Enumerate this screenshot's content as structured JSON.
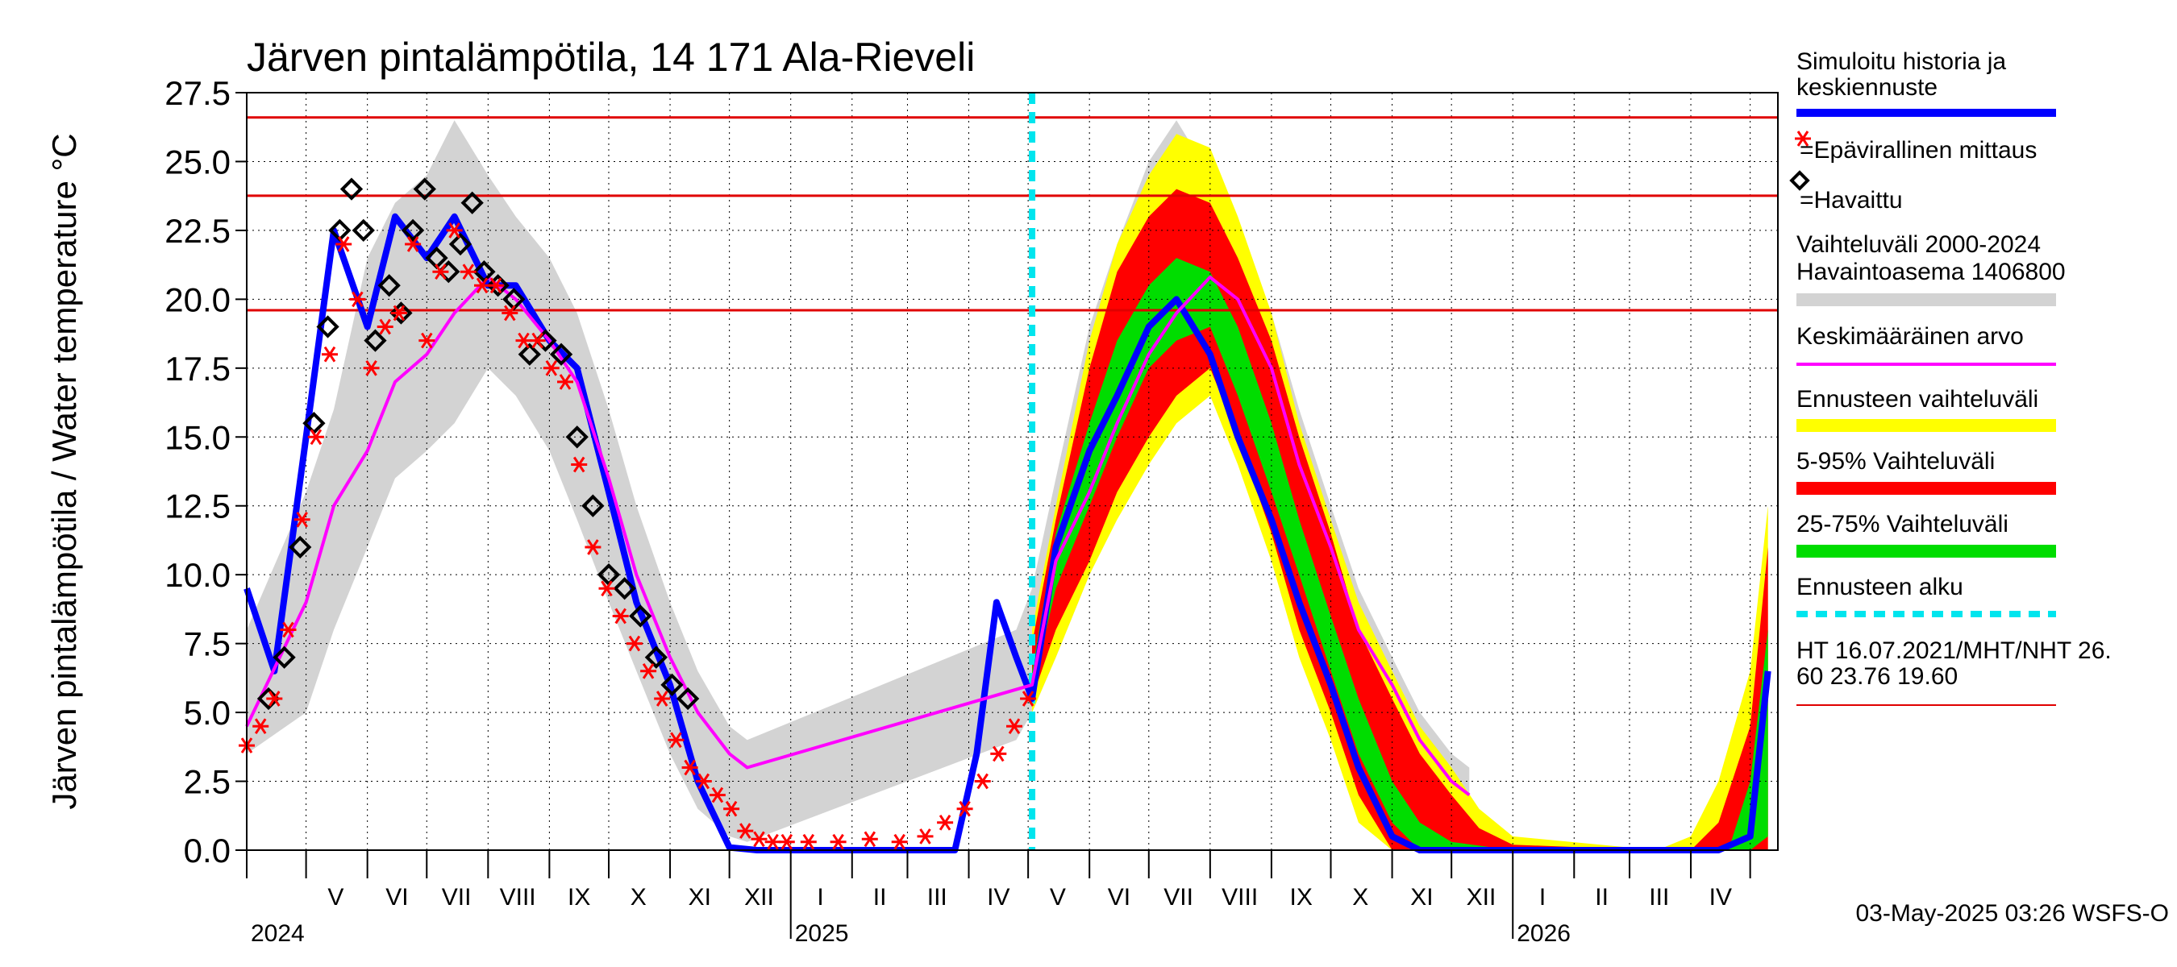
{
  "chart_data": {
    "type": "line",
    "title": "Järven pintalämpötila, 14 171 Ala-Rieveli",
    "ylabel": "Järven pintalämpötila / Water temperature °C",
    "xlabel": "",
    "ylim": [
      0,
      27.5
    ],
    "y_ticks": [
      "0.0",
      "2.5",
      "5.0",
      "7.5",
      "10.0",
      "12.5",
      "15.0",
      "17.5",
      "20.0",
      "22.5",
      "25.0",
      "27.5"
    ],
    "x_range": [
      "2024-04-01",
      "2026-05-15"
    ],
    "x_month_labels": [
      {
        "label": "V",
        "date": "2024-05-16"
      },
      {
        "label": "VI",
        "date": "2024-06-16"
      },
      {
        "label": "VII",
        "date": "2024-07-16"
      },
      {
        "label": "VIII",
        "date": "2024-08-16"
      },
      {
        "label": "IX",
        "date": "2024-09-16"
      },
      {
        "label": "X",
        "date": "2024-10-16"
      },
      {
        "label": "XI",
        "date": "2024-11-16"
      },
      {
        "label": "XII",
        "date": "2024-12-16"
      },
      {
        "label": "I",
        "date": "2025-01-16"
      },
      {
        "label": "II",
        "date": "2025-02-15"
      },
      {
        "label": "III",
        "date": "2025-03-16"
      },
      {
        "label": "IV",
        "date": "2025-04-16"
      },
      {
        "label": "V",
        "date": "2025-05-16"
      },
      {
        "label": "VI",
        "date": "2025-06-16"
      },
      {
        "label": "VII",
        "date": "2025-07-16"
      },
      {
        "label": "VIII",
        "date": "2025-08-16"
      },
      {
        "label": "IX",
        "date": "2025-09-16"
      },
      {
        "label": "X",
        "date": "2025-10-16"
      },
      {
        "label": "XI",
        "date": "2025-11-16"
      },
      {
        "label": "XII",
        "date": "2025-12-16"
      },
      {
        "label": "I",
        "date": "2026-01-16"
      },
      {
        "label": "II",
        "date": "2026-02-15"
      },
      {
        "label": "III",
        "date": "2026-03-16"
      },
      {
        "label": "IV",
        "date": "2026-04-16"
      }
    ],
    "x_year_labels": [
      {
        "label": "2024",
        "date": "2024-04-01"
      },
      {
        "label": "2025",
        "date": "2025-01-01"
      },
      {
        "label": "2026",
        "date": "2026-01-01"
      }
    ],
    "reference_lines": [
      {
        "name": "HT",
        "value": 26.6,
        "color": "#e00000"
      },
      {
        "name": "MHT",
        "value": 23.76,
        "color": "#e00000"
      },
      {
        "name": "NHT",
        "value": 19.6,
        "color": "#e00000"
      }
    ],
    "forecast_start": "2025-05-03",
    "series": [
      {
        "name": "Simuloitu historia ja keskiennuste",
        "color": "#0000ff",
        "x": [
          "2024-04-01",
          "2024-04-15",
          "2024-05-01",
          "2024-05-15",
          "2024-06-01",
          "2024-06-15",
          "2024-07-01",
          "2024-07-15",
          "2024-08-01",
          "2024-08-15",
          "2024-09-01",
          "2024-09-15",
          "2024-10-01",
          "2024-10-15",
          "2024-11-01",
          "2024-11-15",
          "2024-12-01",
          "2024-12-15",
          "2025-01-01",
          "2025-02-01",
          "2025-03-01",
          "2025-03-25",
          "2025-04-05",
          "2025-04-15",
          "2025-04-25",
          "2025-05-03",
          "2025-05-15",
          "2025-06-01",
          "2025-06-15",
          "2025-07-01",
          "2025-07-15",
          "2025-08-01",
          "2025-08-15",
          "2025-09-01",
          "2025-09-15",
          "2025-10-01",
          "2025-10-15",
          "2025-11-01",
          "2025-11-15",
          "2025-12-01",
          "2026-01-01",
          "2026-03-01",
          "2026-04-15",
          "2026-05-01",
          "2026-05-10"
        ],
        "y": [
          9.5,
          6.5,
          15.0,
          22.5,
          19.0,
          23.0,
          21.5,
          23.0,
          20.5,
          20.5,
          18.5,
          17.5,
          13.0,
          9.0,
          6.0,
          2.5,
          0.1,
          0.0,
          0.0,
          0.0,
          0.0,
          0.0,
          3.5,
          9.0,
          7.0,
          5.5,
          11.0,
          14.5,
          16.5,
          19.0,
          20.0,
          18.0,
          15.0,
          12.0,
          9.0,
          6.0,
          3.0,
          0.5,
          0.0,
          0.0,
          0.0,
          0.0,
          0.0,
          0.5,
          6.5
        ]
      },
      {
        "name": "Keskimääräinen arvo",
        "color": "#ff00ff",
        "x": [
          "2024-04-01",
          "2024-05-01",
          "2024-05-15",
          "2024-06-01",
          "2024-06-15",
          "2024-07-01",
          "2024-07-15",
          "2024-08-01",
          "2024-08-15",
          "2024-09-01",
          "2024-09-15",
          "2024-10-01",
          "2024-10-15",
          "2024-11-01",
          "2024-11-15",
          "2024-12-01",
          "2024-12-10",
          "2025-05-03",
          "2025-05-15",
          "2025-06-01",
          "2025-06-15",
          "2025-07-01",
          "2025-07-15",
          "2025-08-01",
          "2025-08-15",
          "2025-09-01",
          "2025-09-15",
          "2025-10-01",
          "2025-10-15",
          "2025-11-01",
          "2025-11-15",
          "2025-12-01",
          "2025-12-10"
        ],
        "y": [
          4.5,
          9.0,
          12.5,
          14.5,
          17.0,
          18.0,
          19.5,
          20.8,
          20.0,
          18.5,
          17.0,
          13.5,
          10.0,
          7.0,
          5.0,
          3.5,
          3.0,
          6.0,
          10.5,
          13.0,
          15.5,
          18.0,
          19.5,
          20.8,
          20.0,
          17.5,
          14.0,
          11.0,
          8.0,
          6.0,
          4.0,
          2.5,
          2.0
        ]
      },
      {
        "name": "=Havaittu",
        "color": "#000000",
        "marker": "diamond",
        "x": [
          "2024-04-12",
          "2024-04-20",
          "2024-04-28",
          "2024-05-05",
          "2024-05-12",
          "2024-05-18",
          "2024-05-24",
          "2024-05-30",
          "2024-06-05",
          "2024-06-12",
          "2024-06-18",
          "2024-06-24",
          "2024-06-30",
          "2024-07-06",
          "2024-07-12",
          "2024-07-18",
          "2024-07-24",
          "2024-07-30",
          "2024-08-06",
          "2024-08-14",
          "2024-08-22",
          "2024-08-30",
          "2024-09-07",
          "2024-09-15",
          "2024-09-23",
          "2024-10-01",
          "2024-10-09",
          "2024-10-17",
          "2024-10-25",
          "2024-11-02",
          "2024-11-10"
        ],
        "y": [
          5.5,
          7.0,
          11.0,
          15.5,
          19.0,
          22.5,
          24.0,
          22.5,
          18.5,
          20.5,
          19.5,
          22.5,
          24.0,
          21.5,
          21.0,
          22.0,
          23.5,
          21.0,
          20.5,
          20.0,
          18.0,
          18.5,
          18.0,
          15.0,
          12.5,
          10.0,
          9.5,
          8.5,
          7.0,
          6.0,
          5.5
        ]
      },
      {
        "name": "=Epävirallinen mittaus",
        "color": "#ff0000",
        "marker": "star",
        "x": [
          "2024-04-01",
          "2024-04-08",
          "2024-04-15",
          "2024-04-22",
          "2024-04-29",
          "2024-05-06",
          "2024-05-13",
          "2024-05-20",
          "2024-05-27",
          "2024-06-03",
          "2024-06-10",
          "2024-06-17",
          "2024-06-24",
          "2024-07-01",
          "2024-07-08",
          "2024-07-15",
          "2024-07-22",
          "2024-07-29",
          "2024-08-05",
          "2024-08-12",
          "2024-08-19",
          "2024-08-26",
          "2024-09-02",
          "2024-09-09",
          "2024-09-16",
          "2024-09-23",
          "2024-09-30",
          "2024-10-07",
          "2024-10-14",
          "2024-10-21",
          "2024-10-28",
          "2024-11-04",
          "2024-11-11",
          "2024-11-18",
          "2024-11-25",
          "2024-12-02",
          "2024-12-09",
          "2024-12-16",
          "2024-12-23",
          "2024-12-30",
          "2025-01-10",
          "2025-01-25",
          "2025-02-10",
          "2025-02-25",
          "2025-03-10",
          "2025-03-20",
          "2025-03-30",
          "2025-04-08",
          "2025-04-16",
          "2025-04-24",
          "2025-05-01"
        ],
        "y": [
          3.8,
          4.5,
          5.5,
          8.0,
          12.0,
          15.0,
          18.0,
          22.0,
          20.0,
          17.5,
          19.0,
          19.5,
          22.0,
          18.5,
          21.0,
          22.5,
          21.0,
          20.5,
          20.5,
          19.5,
          18.5,
          18.5,
          17.5,
          17.0,
          14.0,
          11.0,
          9.5,
          8.5,
          7.5,
          6.5,
          5.5,
          4.0,
          3.0,
          2.5,
          2.0,
          1.5,
          0.7,
          0.4,
          0.3,
          0.3,
          0.3,
          0.3,
          0.4,
          0.3,
          0.5,
          1.0,
          1.5,
          2.5,
          3.5,
          4.5,
          5.5
        ]
      }
    ],
    "bands": [
      {
        "name": "Vaihteluväli 2000-2024 Havaintoasema 1406800",
        "color": "#d3d3d3",
        "x": [
          "2024-04-01",
          "2024-05-01",
          "2024-05-15",
          "2024-06-01",
          "2024-06-15",
          "2024-07-01",
          "2024-07-15",
          "2024-08-01",
          "2024-08-15",
          "2024-09-01",
          "2024-09-15",
          "2024-10-01",
          "2024-10-15",
          "2024-11-01",
          "2024-11-15",
          "2024-12-01",
          "2024-12-10",
          "2025-04-25",
          "2025-05-03",
          "2025-05-15",
          "2025-06-01",
          "2025-06-15",
          "2025-07-01",
          "2025-07-15",
          "2025-08-01",
          "2025-08-15",
          "2025-09-01",
          "2025-09-15",
          "2025-10-01",
          "2025-10-15",
          "2025-11-01",
          "2025-11-15",
          "2025-12-01",
          "2025-12-10"
        ],
        "low": [
          3.5,
          5.0,
          8.0,
          11.0,
          13.5,
          14.5,
          15.5,
          17.5,
          16.5,
          14.5,
          12.0,
          9.0,
          6.5,
          3.5,
          1.5,
          0.5,
          0.3,
          4.0,
          5.0,
          7.0,
          10.0,
          12.5,
          14.5,
          16.0,
          17.0,
          16.0,
          13.5,
          10.0,
          7.0,
          4.5,
          2.0,
          0.5,
          0.1,
          0.0
        ],
        "high": [
          8.0,
          13.0,
          16.0,
          21.5,
          23.5,
          24.5,
          26.5,
          24.5,
          23.0,
          21.5,
          19.5,
          16.0,
          12.5,
          9.0,
          6.5,
          4.5,
          4.0,
          8.0,
          9.5,
          13.5,
          19.0,
          22.0,
          25.0,
          26.5,
          24.5,
          22.0,
          19.5,
          16.0,
          12.5,
          9.5,
          7.0,
          5.0,
          3.5,
          3.0
        ]
      },
      {
        "name": "Ennusteen vaihteluväli",
        "color": "#ffff00",
        "x": [
          "2025-05-03",
          "2025-05-15",
          "2025-06-01",
          "2025-06-15",
          "2025-07-01",
          "2025-07-15",
          "2025-08-01",
          "2025-08-15",
          "2025-09-01",
          "2025-09-15",
          "2025-10-01",
          "2025-10-15",
          "2025-11-01",
          "2025-11-15",
          "2025-12-01",
          "2025-12-15",
          "2026-01-01",
          "2026-03-15",
          "2026-04-01",
          "2026-04-15",
          "2026-05-01",
          "2026-05-10"
        ],
        "low": [
          5.0,
          7.0,
          10.0,
          12.0,
          14.0,
          15.5,
          16.5,
          14.0,
          10.5,
          7.0,
          4.0,
          1.0,
          0.0,
          0.0,
          0.0,
          0.0,
          0.0,
          0.0,
          0.0,
          0.0,
          0.0,
          0.0
        ],
        "high": [
          8.0,
          12.5,
          18.5,
          22.0,
          24.5,
          26.0,
          25.5,
          23.0,
          19.5,
          15.5,
          12.0,
          9.0,
          6.5,
          4.5,
          3.0,
          1.5,
          0.5,
          0.0,
          0.5,
          2.5,
          6.5,
          12.5
        ]
      },
      {
        "name": "5-95% Vaihteluväli",
        "color": "#ff0000",
        "x": [
          "2025-05-03",
          "2025-05-15",
          "2025-06-01",
          "2025-06-15",
          "2025-07-01",
          "2025-07-15",
          "2025-08-01",
          "2025-08-15",
          "2025-09-01",
          "2025-09-15",
          "2025-10-01",
          "2025-10-15",
          "2025-11-01",
          "2025-11-15",
          "2025-12-01",
          "2025-12-15",
          "2026-01-01",
          "2026-03-15",
          "2026-04-01",
          "2026-04-15",
          "2026-05-01",
          "2026-05-10"
        ],
        "low": [
          5.5,
          8.0,
          10.5,
          13.0,
          15.0,
          16.5,
          17.5,
          15.0,
          11.5,
          8.0,
          5.0,
          2.0,
          0.0,
          0.0,
          0.0,
          0.0,
          0.0,
          0.0,
          0.0,
          0.0,
          0.0,
          0.0
        ],
        "high": [
          7.5,
          12.0,
          17.5,
          21.0,
          23.0,
          24.0,
          23.5,
          21.5,
          18.5,
          15.0,
          11.5,
          8.0,
          5.5,
          3.5,
          2.0,
          0.8,
          0.2,
          0.0,
          0.0,
          1.0,
          4.5,
          11.0
        ]
      },
      {
        "name": "25-75% Vaihteluväli",
        "color": "#00dd00",
        "x": [
          "2025-05-03",
          "2025-05-15",
          "2025-06-01",
          "2025-06-15",
          "2025-07-01",
          "2025-07-15",
          "2025-08-01",
          "2025-08-15",
          "2025-09-01",
          "2025-09-15",
          "2025-10-01",
          "2025-10-15",
          "2025-11-01",
          "2025-11-15",
          "2025-12-01",
          "2026-01-01",
          "2026-04-20",
          "2026-05-01",
          "2026-05-10"
        ],
        "low": [
          5.8,
          9.5,
          12.5,
          15.0,
          17.5,
          18.5,
          19.0,
          16.5,
          13.0,
          10.0,
          6.5,
          3.5,
          1.0,
          0.0,
          0.0,
          0.0,
          0.0,
          0.0,
          0.5
        ],
        "high": [
          6.5,
          11.5,
          15.5,
          18.5,
          20.5,
          21.5,
          21.0,
          19.0,
          15.5,
          12.0,
          8.5,
          5.5,
          2.5,
          1.0,
          0.3,
          0.0,
          0.0,
          2.5,
          8.0
        ]
      }
    ],
    "legend": [
      {
        "label": "Simuloitu historia ja keskiennuste",
        "color": "#0000ff",
        "style": "line"
      },
      {
        "label": "=Epävirallinen mittaus",
        "color": "#ff0000",
        "style": "star"
      },
      {
        "label": "=Havaittu",
        "color": "#000000",
        "style": "diamond"
      },
      {
        "label": "Vaihteluväli 2000-2024 Havaintoasema 1406800",
        "color": "#d3d3d3",
        "style": "band"
      },
      {
        "label": "Keskimääräinen arvo",
        "color": "#ff00ff",
        "style": "line"
      },
      {
        "label": "Ennusteen vaihteluväli",
        "color": "#ffff00",
        "style": "band"
      },
      {
        "label": "5-95% Vaihteluväli",
        "color": "#ff0000",
        "style": "band"
      },
      {
        "label": "25-75% Vaihteluväli",
        "color": "#00dd00",
        "style": "band"
      },
      {
        "label": "Ennusteen alku",
        "color": "#00e5ee",
        "style": "dashed"
      },
      {
        "label": "HT 16.07.2021/MHT/NHT 26.60 23.76 19.60",
        "color": "#e00000",
        "style": "thin-line"
      }
    ],
    "legend_placement": "right",
    "grid": true,
    "footer": "03-May-2025 03:26 WSFS-O"
  },
  "legend_text": {
    "sim_line1": "Simuloitu historia ja",
    "sim_line2": "keskiennuste",
    "epav": "=Epävirallinen mittaus",
    "havaittu": "=Havaittu",
    "range_line1": "Vaihteluväli 2000-2024",
    "range_line2": " Havaintoasema 1406800",
    "mean": "Keskimääräinen arvo",
    "fc_range": "Ennusteen vaihteluväli",
    "p5_95": "5-95% Vaihteluväli",
    "p25_75": "25-75% Vaihteluväli",
    "fc_start": "Ennusteen alku",
    "ht_line1": "HT 16.07.2021/MHT/NHT 26.",
    "ht_line2": "60 23.76 19.60"
  }
}
